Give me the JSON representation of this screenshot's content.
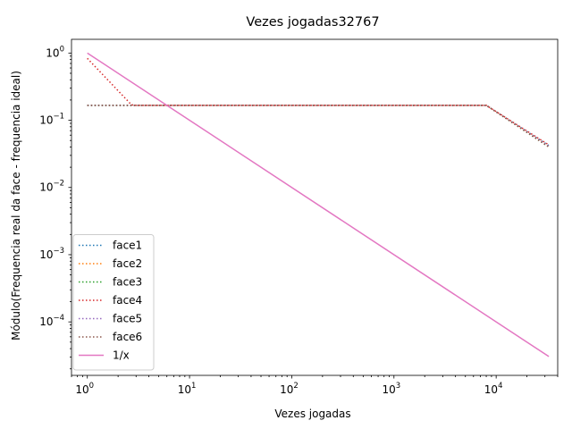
{
  "chart_data": {
    "type": "line",
    "title": "Vezes jogadas32767",
    "xlabel": "Vezes jogadas",
    "ylabel": "Módulo(Frequencia real da face - frequencia ideal)",
    "xscale": "log",
    "yscale": "log",
    "xlim": [
      0.7,
      40000
    ],
    "ylim": [
      1.6e-05,
      1.6
    ],
    "x_tick_labels": [
      {
        "base": "10",
        "exp": "0"
      },
      {
        "base": "10",
        "exp": "1"
      },
      {
        "base": "10",
        "exp": "2"
      },
      {
        "base": "10",
        "exp": "3"
      },
      {
        "base": "10",
        "exp": "4"
      }
    ],
    "y_tick_labels": [
      {
        "base": "10",
        "exp": "−4"
      },
      {
        "base": "10",
        "exp": "−3"
      },
      {
        "base": "10",
        "exp": "−2"
      },
      {
        "base": "10",
        "exp": "−1"
      },
      {
        "base": "10",
        "exp": "0"
      }
    ],
    "legend_position": "lower-left",
    "grid": false,
    "series": [
      {
        "name": "face1",
        "color": "#1f77b4",
        "style": "dotted",
        "points": [
          [
            1,
            0.1667
          ],
          [
            8000,
            0.1667
          ],
          [
            32767,
            0.042
          ]
        ]
      },
      {
        "name": "face2",
        "color": "#ff7f0e",
        "style": "dotted",
        "points": [
          [
            1,
            0.1667
          ],
          [
            8000,
            0.1667
          ],
          [
            32767,
            0.041
          ]
        ]
      },
      {
        "name": "face3",
        "color": "#2ca02c",
        "style": "dotted",
        "points": [
          [
            1,
            0.1667
          ],
          [
            8000,
            0.1667
          ],
          [
            32767,
            0.04
          ]
        ]
      },
      {
        "name": "face4",
        "color": "#d62728",
        "style": "dotted",
        "points": [
          [
            1,
            0.8333
          ],
          [
            2.7,
            0.17
          ],
          [
            3,
            0.1667
          ],
          [
            8000,
            0.1667
          ],
          [
            32767,
            0.043
          ]
        ]
      },
      {
        "name": "face5",
        "color": "#9467bd",
        "style": "dotted",
        "points": [
          [
            1,
            0.1667
          ],
          [
            8000,
            0.1667
          ],
          [
            32767,
            0.041
          ]
        ]
      },
      {
        "name": "face6",
        "color": "#8c564b",
        "style": "dotted",
        "points": [
          [
            1,
            0.1667
          ],
          [
            8000,
            0.1667
          ],
          [
            32767,
            0.04
          ]
        ]
      },
      {
        "name": "1/x",
        "color": "#e377c2",
        "style": "solid",
        "points": [
          [
            1,
            1
          ],
          [
            32767,
            3.05e-05
          ]
        ]
      }
    ]
  }
}
